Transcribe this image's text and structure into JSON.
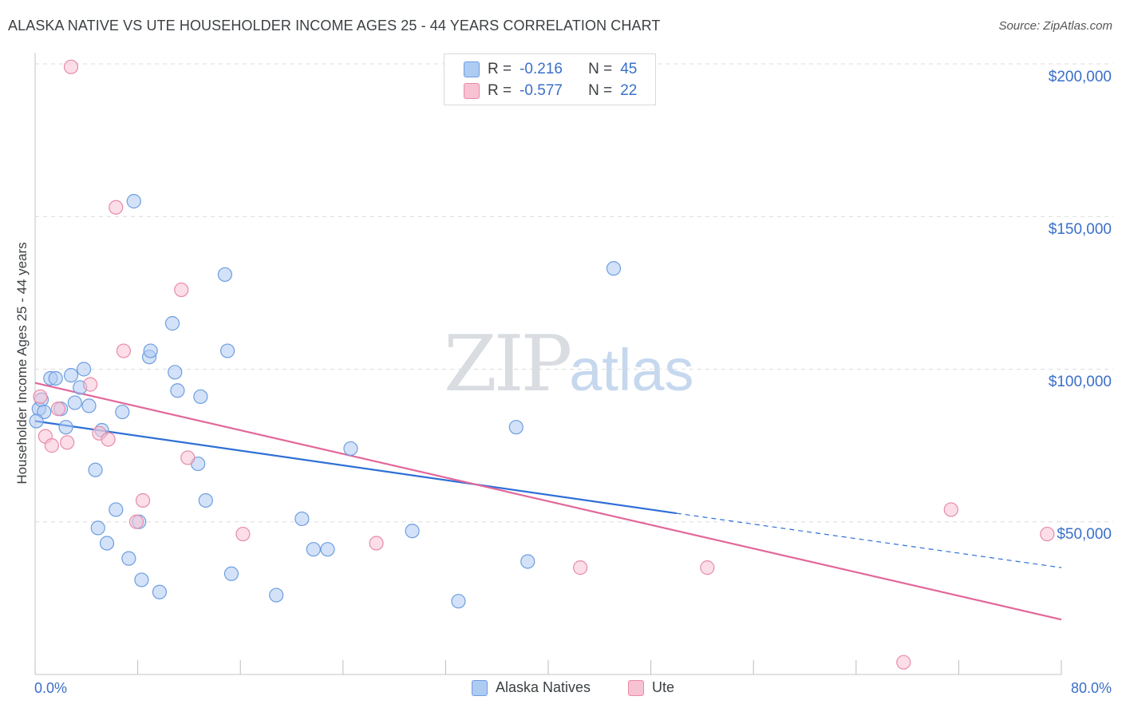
{
  "header": {
    "title": "ALASKA NATIVE VS UTE HOUSEHOLDER INCOME AGES 25 - 44 YEARS CORRELATION CHART",
    "source": "Source: ZipAtlas.com"
  },
  "watermark": {
    "zip": "ZIP",
    "atlas": "atlas"
  },
  "legend": {
    "rows": [
      {
        "r_label": "R =",
        "r_value": "-0.216",
        "n_label": "N =",
        "n_value": "45"
      },
      {
        "r_label": "R =",
        "r_value": "-0.577",
        "n_label": "N =",
        "n_value": "22"
      }
    ]
  },
  "bottom_legend": {
    "series1": "Alaska Natives",
    "series2": "Ute"
  },
  "colors": {
    "blue_fill": "#aecbf2",
    "blue_stroke": "#6d9ee0",
    "blue_line": "#2f6fd6",
    "pink_fill": "#f7c3d3",
    "pink_stroke": "#e98aa9",
    "pink_line": "#e2679a",
    "axis_text": "#3a6fc9",
    "grid": "#dcdcdc"
  },
  "chart_data": {
    "type": "scatter",
    "title": "ALASKA NATIVE VS UTE HOUSEHOLDER INCOME AGES 25 - 44 YEARS CORRELATION CHART",
    "xlabel": "",
    "ylabel": "Householder Income Ages 25 - 44 years",
    "xlim": [
      0,
      80
    ],
    "ylim": [
      0,
      205000
    ],
    "x_tick_labels": [
      "0.0%",
      "80.0%"
    ],
    "y_ticks": [
      50000,
      100000,
      150000,
      200000
    ],
    "y_tick_labels": [
      "$50,000",
      "$100,000",
      "$150,000",
      "$200,000"
    ],
    "grid": true,
    "series": [
      {
        "name": "Alaska Natives",
        "color": "#aecbf2",
        "r": -0.216,
        "n": 45,
        "trend": {
          "x0": 0,
          "y0": 83000,
          "x1": 50,
          "y1": 52800,
          "dash_to_x": 80,
          "dash_to_y": 35000
        },
        "points": [
          [
            0.3,
            87000
          ],
          [
            0.5,
            90000
          ],
          [
            0.7,
            86000
          ],
          [
            1.2,
            97000
          ],
          [
            1.6,
            97000
          ],
          [
            2.0,
            87000
          ],
          [
            2.4,
            81000
          ],
          [
            2.8,
            98000
          ],
          [
            3.1,
            89000
          ],
          [
            3.5,
            94000
          ],
          [
            3.8,
            100000
          ],
          [
            4.2,
            88000
          ],
          [
            4.7,
            67000
          ],
          [
            4.9,
            48000
          ],
          [
            5.2,
            80000
          ],
          [
            5.6,
            43000
          ],
          [
            6.3,
            54000
          ],
          [
            6.8,
            86000
          ],
          [
            7.3,
            38000
          ],
          [
            7.7,
            155000
          ],
          [
            8.1,
            50000
          ],
          [
            8.3,
            31000
          ],
          [
            8.9,
            104000
          ],
          [
            9.0,
            106000
          ],
          [
            9.7,
            27000
          ],
          [
            10.7,
            115000
          ],
          [
            10.9,
            99000
          ],
          [
            11.1,
            93000
          ],
          [
            12.7,
            69000
          ],
          [
            12.9,
            91000
          ],
          [
            13.3,
            57000
          ],
          [
            14.8,
            131000
          ],
          [
            15.0,
            106000
          ],
          [
            15.3,
            33000
          ],
          [
            18.8,
            26000
          ],
          [
            20.8,
            51000
          ],
          [
            21.7,
            41000
          ],
          [
            22.8,
            41000
          ],
          [
            24.6,
            74000
          ],
          [
            29.4,
            47000
          ],
          [
            33.0,
            24000
          ],
          [
            37.5,
            81000
          ],
          [
            38.4,
            37000
          ],
          [
            45.1,
            133000
          ],
          [
            0.1,
            83000
          ]
        ]
      },
      {
        "name": "Ute",
        "color": "#f7c3d3",
        "r": -0.577,
        "n": 22,
        "trend": {
          "x0": 0,
          "y0": 95500,
          "x1": 80,
          "y1": 18000
        },
        "points": [
          [
            0.4,
            91000
          ],
          [
            0.8,
            78000
          ],
          [
            1.3,
            75000
          ],
          [
            1.8,
            87000
          ],
          [
            2.5,
            76000
          ],
          [
            2.8,
            199000
          ],
          [
            4.3,
            95000
          ],
          [
            5.0,
            79000
          ],
          [
            5.7,
            77000
          ],
          [
            6.3,
            153000
          ],
          [
            6.9,
            106000
          ],
          [
            7.9,
            50000
          ],
          [
            8.4,
            57000
          ],
          [
            11.4,
            126000
          ],
          [
            11.9,
            71000
          ],
          [
            16.2,
            46000
          ],
          [
            26.6,
            43000
          ],
          [
            42.5,
            35000
          ],
          [
            52.4,
            35000
          ],
          [
            67.7,
            4000
          ],
          [
            71.4,
            54000
          ],
          [
            78.9,
            46000
          ]
        ]
      }
    ]
  }
}
